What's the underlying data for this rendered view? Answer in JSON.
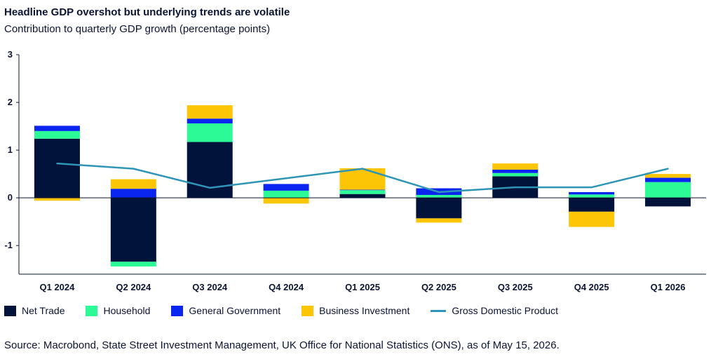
{
  "header": {
    "title": "Headline GDP overshot but underlying trends are volatile",
    "subtitle": "Contribution to quarterly GDP growth (percentage points)"
  },
  "source": "Source: Macrobond, State Street Investment Management, UK Office for National Statistics (ONS), as of May 15, 2026.",
  "chart_data": {
    "type": "bar",
    "stacked": true,
    "title": "Headline GDP overshot but underlying trends are volatile",
    "subtitle": "Contribution to quarterly GDP growth (percentage points)",
    "xlabel": "",
    "ylabel": "",
    "ylim": [
      -1.6,
      3
    ],
    "yticks": [
      3,
      2,
      1,
      0,
      -1
    ],
    "grid": false,
    "legend_position": "bottom",
    "categories": [
      "Q1 2024",
      "Q2 2024",
      "Q3 2024",
      "Q4 2024",
      "Q1 2025",
      "Q2 2025",
      "Q3 2025",
      "Q4 2025",
      "Q1 2026"
    ],
    "series": [
      {
        "name": "Net Trade",
        "kind": "bar",
        "color": "#01123b",
        "values": [
          1.24,
          -1.34,
          1.17,
          0.0,
          0.08,
          -0.43,
          0.45,
          -0.29,
          -0.18
        ]
      },
      {
        "name": "Household",
        "kind": "bar",
        "color": "#2cfa97",
        "values": [
          0.16,
          -0.1,
          0.39,
          0.15,
          0.08,
          0.06,
          0.07,
          0.07,
          0.33
        ]
      },
      {
        "name": "General Government",
        "kind": "bar",
        "color": "#0b25f0",
        "values": [
          0.11,
          0.19,
          0.1,
          0.14,
          0.01,
          0.14,
          0.07,
          0.05,
          0.09
        ]
      },
      {
        "name": "Business Investment",
        "kind": "bar",
        "color": "#fcc506",
        "values": [
          -0.06,
          0.2,
          0.28,
          -0.12,
          0.45,
          -0.09,
          0.13,
          -0.32,
          0.08
        ]
      },
      {
        "name": "Gross Domestic Product",
        "kind": "line",
        "color": "#2e95b6",
        "values": [
          0.72,
          0.61,
          0.21,
          0.41,
          0.61,
          0.12,
          0.22,
          0.22,
          0.61
        ]
      }
    ]
  }
}
